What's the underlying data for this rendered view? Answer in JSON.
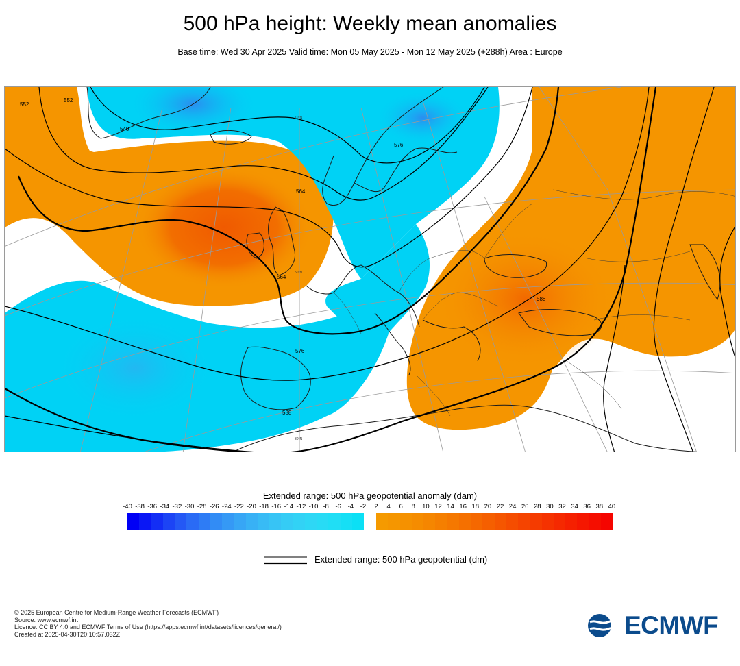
{
  "header": {
    "title": "500 hPa height: Weekly mean anomalies",
    "subtitle": "Base time: Wed 30 Apr 2025 Valid time: Mon 05 May 2025 - Mon 12 May 2025 (+288h) Area : Europe"
  },
  "map": {
    "region": "Europe",
    "contour_labels": [
      "552",
      "540",
      "552",
      "564",
      "576",
      "564",
      "576",
      "588",
      "588"
    ],
    "latitude_labels": [
      "70°N",
      "50°N",
      "30°N"
    ]
  },
  "legend": {
    "anomaly_title": "Extended range: 500 hPa geopotential anomaly (dam)",
    "negative_ticks": [
      "-40",
      "-38",
      "-36",
      "-34",
      "-32",
      "-30",
      "-28",
      "-26",
      "-24",
      "-22",
      "-20",
      "-18",
      "-16",
      "-14",
      "-12",
      "-10",
      "-8",
      "-6",
      "-4",
      "-2"
    ],
    "positive_ticks": [
      "2",
      "4",
      "6",
      "8",
      "10",
      "12",
      "14",
      "16",
      "18",
      "20",
      "22",
      "24",
      "26",
      "28",
      "30",
      "32",
      "34",
      "36",
      "38",
      "40"
    ],
    "negative_colors": [
      "#0000f5",
      "#0a17f5",
      "#132ef5",
      "#1c44f5",
      "#2458f5",
      "#2a6bf5",
      "#2e7cf5",
      "#328cf5",
      "#3599f5",
      "#37a6f5",
      "#38b1f5",
      "#38bbf5",
      "#37c4f5",
      "#35ccf5",
      "#32d2f5",
      "#2ed7f5",
      "#28dbf5",
      "#20def5",
      "#16dff5",
      "#0be0f5"
    ],
    "positive_colors": [
      "#f59a00",
      "#f59600",
      "#f59100",
      "#f58c00",
      "#f58600",
      "#f57f00",
      "#f57800",
      "#f57000",
      "#f56800",
      "#f55f00",
      "#f55600",
      "#f54d00",
      "#f54400",
      "#f53b00",
      "#f53200",
      "#f52900",
      "#f52000",
      "#f51700",
      "#f50e00",
      "#f50500"
    ],
    "contour_title": "Extended range: 500 hPa geopotential (dm)"
  },
  "footer": {
    "line1": "© 2025 European Centre for Medium-Range Weather Forecasts (ECMWF)",
    "line2": "Source: www.ecmwf.int",
    "line3": "Licence: CC BY 4.0 and ECMWF Terms of Use (https://apps.ecmwf.int/datasets/licences/general/)",
    "line4": "Created at 2025-04-30T20:10:57.032Z"
  },
  "logo": {
    "text": "ECMWF",
    "color": "#0b4b8c"
  },
  "colors": {
    "negative_anomaly": "#00d2f5",
    "positive_anomaly": "#f59500",
    "strong_positive": "#f26a00",
    "strong_negative": "#2a9cf0",
    "contour": "#000000"
  }
}
